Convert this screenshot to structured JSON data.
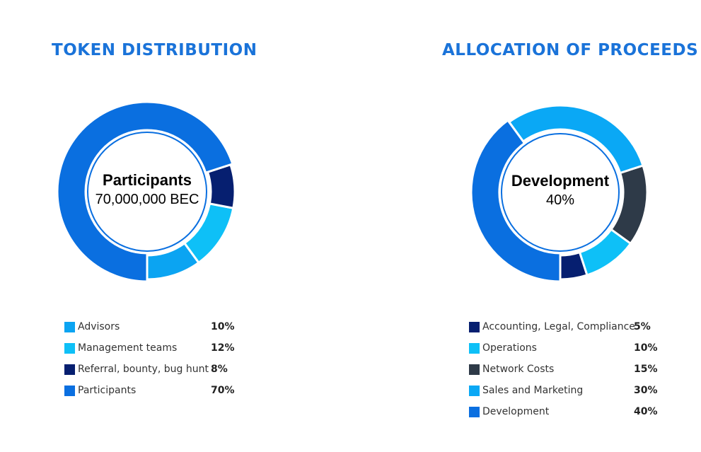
{
  "colors": {
    "title": "#1a73d9",
    "advisors": "#0ba4f2",
    "management": "#0ec0f7",
    "referral": "#061f70",
    "participants": "#0a6fe0",
    "accounting": "#061f70",
    "operations": "#0ec0f7",
    "network": "#2e3a48",
    "sales": "#0aa8f5",
    "development": "#0a6fe0"
  },
  "token_distribution": {
    "title": "TOKEN DISTRIBUTION",
    "center_title": "Participants",
    "center_value": "70,000,000 BEC",
    "legend": [
      {
        "label": "Advisors",
        "pct": "10%"
      },
      {
        "label": "Management teams",
        "pct": "12%"
      },
      {
        "label": "Referral, bounty, bug hunt",
        "pct": "8%"
      },
      {
        "label": "Participants",
        "pct": "70%"
      }
    ]
  },
  "allocation_of_proceeds": {
    "title": "ALLOCATION OF PROCEEDS",
    "center_title": "Development",
    "center_value": "40%",
    "legend": [
      {
        "label": "Accounting, Legal, Compliance",
        "pct": "5%"
      },
      {
        "label": "Operations",
        "pct": "10%"
      },
      {
        "label": "Network Costs",
        "pct": "15%"
      },
      {
        "label": "Sales and Marketing",
        "pct": "30%"
      },
      {
        "label": "Development",
        "pct": "40%"
      }
    ]
  },
  "chart_data": [
    {
      "type": "pie",
      "title": "TOKEN DISTRIBUTION",
      "highlighted": "Participants",
      "slices": [
        {
          "name": "Advisors",
          "value": 10,
          "color": "#0ba4f2"
        },
        {
          "name": "Management teams",
          "value": 12,
          "color": "#0ec0f7"
        },
        {
          "name": "Referral, bounty, bug hunt",
          "value": 8,
          "color": "#061f70"
        },
        {
          "name": "Participants",
          "value": 70,
          "color": "#0a6fe0"
        }
      ]
    },
    {
      "type": "pie",
      "title": "ALLOCATION OF PROCEEDS",
      "highlighted": "Development",
      "slices": [
        {
          "name": "Accounting, Legal, Compliance",
          "value": 5,
          "color": "#061f70"
        },
        {
          "name": "Operations",
          "value": 10,
          "color": "#0ec0f7"
        },
        {
          "name": "Network Costs",
          "value": 15,
          "color": "#2e3a48"
        },
        {
          "name": "Sales and Marketing",
          "value": 30,
          "color": "#0aa8f5"
        },
        {
          "name": "Development",
          "value": 40,
          "color": "#0a6fe0"
        }
      ]
    }
  ]
}
